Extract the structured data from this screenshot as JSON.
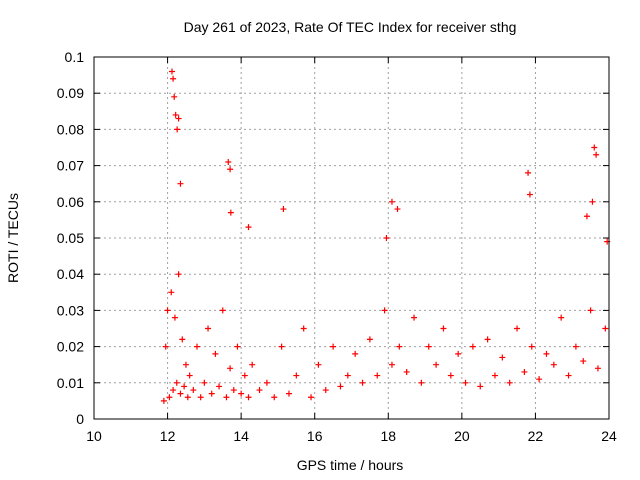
{
  "chart_data": {
    "type": "scatter",
    "title": "Day 261 of 2023, Rate Of TEC Index for receiver sthg",
    "xlabel": "GPS time / hours",
    "ylabel": "ROTI / TECUs",
    "xlim": [
      10,
      24
    ],
    "ylim": [
      0,
      0.1
    ],
    "grid": true,
    "marker": "+",
    "marker_color": "#ff0000",
    "x_ticks": [
      10,
      12,
      14,
      16,
      18,
      20,
      22,
      24
    ],
    "x_tick_labels": [
      "10",
      "12",
      "14",
      "16",
      "18",
      "20",
      "22",
      "24"
    ],
    "y_ticks": [
      0,
      0.01,
      0.02,
      0.03,
      0.04,
      0.05,
      0.06,
      0.07,
      0.08,
      0.09,
      0.1
    ],
    "y_tick_labels": [
      "0",
      "0.01",
      "0.02",
      "0.03",
      "0.04",
      "0.05",
      "0.06",
      "0.07",
      "0.08",
      "0.09",
      "0.1"
    ],
    "series": [
      {
        "name": "ROTI",
        "x": [
          11.9,
          11.95,
          12.0,
          12.05,
          12.1,
          12.15,
          12.2,
          12.25,
          12.3,
          12.35,
          12.4,
          12.45,
          12.5,
          12.55,
          12.6,
          12.7,
          12.8,
          12.9,
          13.0,
          13.1,
          13.2,
          13.3,
          13.4,
          13.5,
          13.6,
          13.7,
          13.8,
          13.9,
          14.0,
          14.1,
          14.2,
          14.3,
          14.5,
          14.7,
          14.9,
          15.1,
          15.3,
          15.5,
          15.7,
          15.9,
          16.1,
          16.3,
          16.5,
          16.7,
          16.9,
          17.1,
          17.3,
          17.5,
          17.7,
          17.9,
          18.1,
          18.3,
          18.5,
          18.7,
          18.9,
          19.1,
          19.3,
          19.5,
          19.7,
          19.9,
          20.1,
          20.3,
          20.5,
          20.7,
          20.9,
          21.1,
          21.3,
          21.5,
          21.7,
          21.9,
          22.1,
          22.3,
          22.5,
          22.7,
          22.9,
          23.1,
          23.3,
          23.5,
          23.7,
          23.9,
          12.12,
          12.15,
          12.18,
          12.22,
          12.26,
          12.3,
          12.35,
          13.65,
          13.7,
          13.72,
          14.2,
          15.15,
          17.95,
          18.1,
          18.25,
          21.8,
          21.85,
          23.6,
          23.65,
          23.55,
          23.4,
          23.95
        ],
        "y": [
          0.005,
          0.02,
          0.03,
          0.006,
          0.035,
          0.008,
          0.028,
          0.01,
          0.04,
          0.007,
          0.022,
          0.009,
          0.015,
          0.006,
          0.012,
          0.008,
          0.02,
          0.006,
          0.01,
          0.025,
          0.007,
          0.018,
          0.009,
          0.03,
          0.006,
          0.014,
          0.008,
          0.02,
          0.007,
          0.012,
          0.006,
          0.015,
          0.008,
          0.01,
          0.006,
          0.02,
          0.007,
          0.012,
          0.025,
          0.006,
          0.015,
          0.008,
          0.02,
          0.009,
          0.012,
          0.018,
          0.01,
          0.022,
          0.012,
          0.03,
          0.015,
          0.02,
          0.013,
          0.028,
          0.01,
          0.02,
          0.015,
          0.025,
          0.012,
          0.018,
          0.01,
          0.02,
          0.009,
          0.022,
          0.012,
          0.017,
          0.01,
          0.025,
          0.013,
          0.02,
          0.011,
          0.018,
          0.015,
          0.028,
          0.012,
          0.02,
          0.016,
          0.03,
          0.014,
          0.025,
          0.096,
          0.094,
          0.089,
          0.084,
          0.08,
          0.083,
          0.065,
          0.071,
          0.069,
          0.057,
          0.053,
          0.058,
          0.05,
          0.06,
          0.058,
          0.068,
          0.062,
          0.075,
          0.073,
          0.06,
          0.056,
          0.049
        ]
      }
    ]
  }
}
